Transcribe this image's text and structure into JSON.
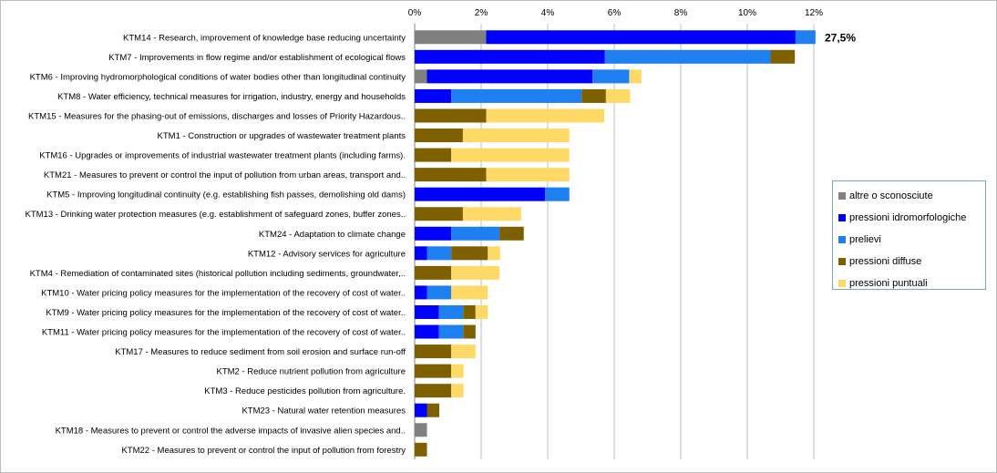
{
  "chart_data": {
    "type": "bar",
    "orientation": "horizontal",
    "stacked": true,
    "x_ticks": [
      "0%",
      "2%",
      "4%",
      "6%",
      "8%",
      "10%",
      "12%"
    ],
    "xlim": [
      0,
      12
    ],
    "x_axis_position": "top",
    "grid": "vertical",
    "legend_position": "right",
    "categories": [
      "KTM14 - Research, improvement of knowledge base reducing uncertainty",
      "KTM7 - Improvements in flow regime and/or establishment of ecological flows",
      "KTM6 - Improving hydromorphological conditions of water bodies other than longitudinal continuity",
      "KTM8 - Water efficiency, technical measures for irrigation, industry, energy and households",
      "KTM15 - Measures for the phasing-out of emissions, discharges and losses of Priority Hazardous..",
      "KTM1 - Construction or upgrades of wastewater treatment plants",
      "KTM16 - Upgrades or improvements of industrial wastewater treatment plants (including farms).",
      "KTM21 - Measures to prevent or control the input of pollution from urban areas, transport and..",
      "KTM5 - Improving longitudinal continuity (e.g. establishing fish passes, demolishing old dams)",
      "KTM13 - Drinking water protection measures (e.g. establishment of safeguard zones, buffer zones..",
      "KTM24 - Adaptation to climate change",
      "KTM12 - Advisory services for agriculture",
      "KTM4 - Remediation of contaminated sites (historical pollution including sediments, groundwater,..",
      "KTM10 - Water pricing policy measures for the implementation of the recovery of cost of water..",
      "KTM9 - Water pricing policy measures for the implementation of the recovery of cost of water..",
      "KTM11 - Water pricing policy measures for the implementation of the recovery of cost of water..",
      "KTM17 - Measures to reduce sediment from soil erosion and surface run-off",
      "KTM2 - Reduce nutrient pollution from agriculture",
      "KTM3 - Reduce pesticides pollution from agriculture.",
      "KTM23 - Natural water retention measures",
      "KTM18 - Measures to prevent or control the adverse impacts of invasive alien species and..",
      "KTM22 - Measures to prevent or control the input of pollution from forestry"
    ],
    "series": [
      {
        "name": "altre o sconosciute",
        "color": "#808080",
        "values": [
          2.15,
          0,
          0.37,
          0,
          0,
          0,
          0,
          0,
          0,
          0,
          0,
          0,
          0,
          0,
          0,
          0,
          0,
          0,
          0,
          0,
          0.37,
          0
        ]
      },
      {
        "name": "pressioni idromorfologiche",
        "color": "#0000ff",
        "values": [
          9.3,
          5.72,
          4.98,
          1.1,
          0,
          0,
          0,
          0,
          3.92,
          0,
          1.1,
          0.37,
          0,
          0.37,
          0.73,
          0.73,
          0,
          0,
          0,
          0.37,
          0,
          0
        ]
      },
      {
        "name": "prelievi",
        "color": "#1e7ff0",
        "values": [
          0.6,
          4.98,
          1.1,
          3.92,
          0,
          0,
          0,
          0,
          0.73,
          0,
          1.45,
          0.73,
          0,
          0.73,
          0.73,
          0.73,
          0,
          0,
          0,
          0,
          0,
          0
        ]
      },
      {
        "name": "pressioni diffuse",
        "color": "#7f6000",
        "values": [
          0,
          0.73,
          0,
          0.73,
          2.15,
          1.45,
          1.1,
          2.15,
          0,
          1.45,
          0.73,
          1.1,
          1.1,
          0,
          0.37,
          0.37,
          1.1,
          1.1,
          1.1,
          0.37,
          0,
          0.37
        ]
      },
      {
        "name": "pressioni puntuali",
        "color": "#ffd966",
        "values": [
          0,
          0,
          0.37,
          0.73,
          3.55,
          3.2,
          3.55,
          2.5,
          0,
          1.75,
          0,
          0.37,
          1.45,
          1.1,
          0.37,
          0,
          0.73,
          0.37,
          0.37,
          0,
          0,
          0
        ]
      }
    ],
    "annotations": [
      {
        "category_index": 0,
        "text": "27,5%"
      }
    ]
  }
}
